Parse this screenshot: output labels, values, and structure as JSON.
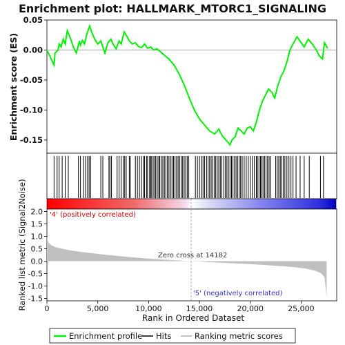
{
  "chart_data": [
    {
      "type": "line",
      "title": "Enrichment plot: HALLMARK_MTORC1_SIGNALING",
      "ylabel": "Enrichment score (ES)",
      "ylim": [
        -0.172,
        0.05
      ],
      "xlim": [
        0,
        28500
      ],
      "yticks": [
        -0.15,
        -0.1,
        -0.05,
        0.0,
        0.05
      ],
      "ytick_labels": [
        "-0.15",
        "-0.10",
        "-0.05",
        "0.00",
        "0.05"
      ],
      "series": [
        {
          "name": "Enrichment profile",
          "color": "#00ee00",
          "x": [
            0,
            700,
            800,
            1100,
            1200,
            1400,
            1600,
            1800,
            2000,
            2300,
            2600,
            2900,
            3200,
            3300,
            3500,
            3700,
            3900,
            4200,
            4400,
            4700,
            5000,
            5300,
            5500,
            5700,
            6000,
            6300,
            6500,
            6800,
            7100,
            7300,
            7600,
            7900,
            8100,
            8400,
            8700,
            9000,
            9300,
            9600,
            9900,
            10200,
            10500,
            10800,
            11100,
            11500,
            12000,
            12500,
            13000,
            13500,
            14000,
            14500,
            15000,
            15500,
            16000,
            16500,
            16900,
            17200,
            17600,
            18000,
            18200,
            18500,
            18800,
            19100,
            19400,
            19700,
            20000,
            20300,
            20600,
            20900,
            21200,
            21500,
            21800,
            22100,
            22400,
            22700,
            23000,
            23300,
            23600,
            23900,
            24200,
            24600,
            24900,
            25300,
            25700,
            26100,
            26500,
            26800,
            27100,
            27300,
            27600
          ],
          "y": [
            0.0,
            -0.025,
            -0.005,
            0.0,
            0.01,
            0.005,
            0.018,
            0.01,
            0.032,
            0.02,
            0.005,
            -0.005,
            0.015,
            0.008,
            0.016,
            0.01,
            0.025,
            0.04,
            0.03,
            0.018,
            0.01,
            0.015,
            0.005,
            -0.005,
            0.012,
            0.018,
            0.01,
            0.002,
            0.015,
            0.01,
            0.03,
            0.022,
            0.015,
            0.01,
            0.012,
            0.006,
            0.004,
            0.01,
            0.003,
            0.005,
            0.0,
            0.002,
            -0.002,
            -0.008,
            -0.015,
            -0.025,
            -0.04,
            -0.058,
            -0.08,
            -0.1,
            -0.115,
            -0.125,
            -0.135,
            -0.14,
            -0.132,
            -0.142,
            -0.15,
            -0.158,
            -0.15,
            -0.145,
            -0.13,
            -0.135,
            -0.14,
            -0.13,
            -0.128,
            -0.135,
            -0.12,
            -0.1,
            -0.085,
            -0.075,
            -0.065,
            -0.07,
            -0.08,
            -0.06,
            -0.045,
            -0.035,
            -0.02,
            0.0,
            0.01,
            0.022,
            0.015,
            0.005,
            0.018,
            0.01,
            0.0,
            -0.01,
            -0.015,
            0.012,
            0.003
          ]
        }
      ],
      "grid": false,
      "legend_position": "bottom"
    },
    {
      "type": "line",
      "xlabel": "Rank in Ordered Dataset",
      "ylabel": "Ranked list metric (Signal2Noise)",
      "xlim": [
        0,
        28500
      ],
      "ylim": [
        -1.6,
        2.1
      ],
      "xticks": [
        0,
        5000,
        10000,
        15000,
        20000,
        25000
      ],
      "xtick_labels": [
        "0",
        "5,000",
        "10,000",
        "15,000",
        "20,000",
        "25,000"
      ],
      "yticks": [
        -1.5,
        -1.0,
        -0.5,
        0.0,
        0.5,
        1.0,
        1.5,
        2.0
      ],
      "ytick_labels": [
        "-1.5",
        "-1.0",
        "-0.5",
        "0.0",
        "0.5",
        "1.0",
        "1.5",
        "2.0"
      ],
      "series": [
        {
          "name": "Ranking metric scores",
          "color": "#c0c0c0",
          "x": [
            0,
            150,
            400,
            800,
            1500,
            2500,
            4000,
            6000,
            8000,
            10000,
            12000,
            14182,
            16000,
            18000,
            20000,
            22000,
            24000,
            25500,
            26500,
            27000,
            27300,
            27500
          ],
          "y": [
            0.95,
            0.75,
            0.65,
            0.57,
            0.5,
            0.42,
            0.34,
            0.25,
            0.17,
            0.1,
            0.05,
            0.0,
            -0.04,
            -0.08,
            -0.12,
            -0.17,
            -0.23,
            -0.3,
            -0.4,
            -0.5,
            -0.65,
            -1.45
          ]
        }
      ],
      "annotations": [
        "Zero cross at 14182",
        "'4' (positively correlated)",
        "'5' (negatively correlated)"
      ],
      "zero_cross": 14182
    }
  ],
  "hits": [
    700,
    1000,
    1200,
    1500,
    1800,
    2100,
    3100,
    3300,
    3600,
    3800,
    4000,
    4150,
    4300,
    5300,
    5500,
    6100,
    6200,
    6350,
    6900,
    7100,
    7300,
    7500,
    7650,
    7800,
    8100,
    8200,
    8700,
    8900,
    9100,
    9300,
    9500,
    9600,
    9800,
    9900,
    10100,
    10200,
    10300,
    10450,
    10600,
    10700,
    10850,
    11000,
    11100,
    11250,
    11400,
    11550,
    11700,
    11850,
    12000,
    12150,
    12300,
    12450,
    12600,
    12750,
    12900,
    13050,
    13200,
    13350,
    13500,
    13650,
    13800,
    13950,
    14600,
    14800,
    15000,
    15200,
    15350,
    15500,
    15700,
    15850,
    16000,
    16150,
    16300,
    16450,
    16600,
    16750,
    16900,
    17050,
    17200,
    17400,
    17550,
    17700,
    17850,
    18000,
    18150,
    18300,
    18450,
    18600,
    18750,
    18900,
    19050,
    19200,
    19400,
    19600,
    19800,
    20000,
    20200,
    20400,
    20600,
    20700,
    20850,
    21000,
    21100,
    21250,
    21400,
    21550,
    21700,
    21850,
    22000,
    22500,
    22650,
    22800,
    22950,
    23100,
    23250,
    23400,
    23600,
    23800,
    24000,
    24200,
    24500,
    24900,
    25300,
    25800,
    26900,
    27200
  ],
  "legend": {
    "items": [
      {
        "label": "Enrichment profile",
        "color": "#00ee00"
      },
      {
        "label": "Hits",
        "color": "#000000"
      },
      {
        "label": "Ranking metric scores",
        "color": "#c0c0c0"
      }
    ]
  },
  "colors": {
    "positive": "#ff0000",
    "negative": "#0000ff",
    "positive_label": "#cc0000",
    "negative_label": "#3333cc"
  }
}
